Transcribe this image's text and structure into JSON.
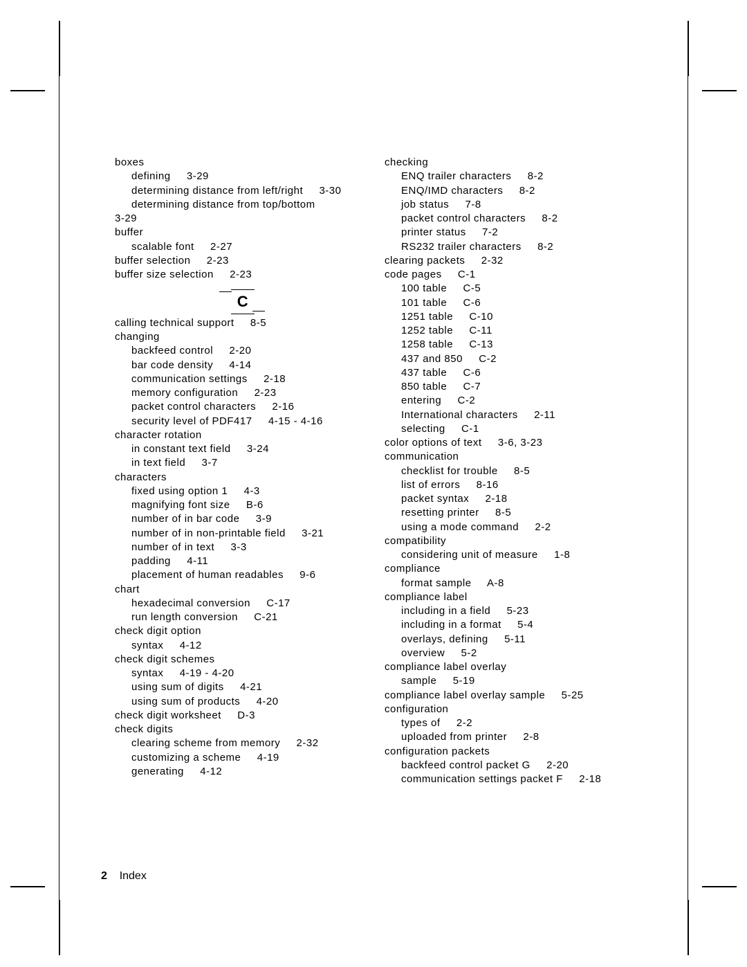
{
  "page": {
    "footer_num": "2",
    "footer_label": "Index",
    "section_letter": "C"
  },
  "left_col": [
    {
      "lvl": 0,
      "t": "boxes"
    },
    {
      "lvl": 1,
      "t": "defining     3-29"
    },
    {
      "lvl": 1,
      "t": "determining distance from left/right     3-30"
    },
    {
      "lvl": 1,
      "t": "determining distance from top/bottom"
    },
    {
      "lvl": 0,
      "t": "3-29"
    },
    {
      "lvl": 0,
      "t": "buffer"
    },
    {
      "lvl": 1,
      "t": "scalable font     2-27"
    },
    {
      "lvl": 0,
      "t": "buffer selection     2-23"
    },
    {
      "lvl": 0,
      "t": "buffer size selection     2-23"
    },
    {
      "section": "C"
    },
    {
      "lvl": 0,
      "t": "calling technical support     8-5"
    },
    {
      "lvl": 0,
      "t": "changing"
    },
    {
      "lvl": 1,
      "t": "backfeed control     2-20"
    },
    {
      "lvl": 1,
      "t": "bar code density     4-14"
    },
    {
      "lvl": 1,
      "t": "communication settings     2-18"
    },
    {
      "lvl": 1,
      "t": "memory configuration     2-23"
    },
    {
      "lvl": 1,
      "t": "packet control characters     2-16"
    },
    {
      "lvl": 1,
      "t": "security level of PDF417     4-15 - 4-16"
    },
    {
      "lvl": 0,
      "t": "character rotation"
    },
    {
      "lvl": 1,
      "t": "in constant text field     3-24"
    },
    {
      "lvl": 1,
      "t": "in text field     3-7"
    },
    {
      "lvl": 0,
      "t": "characters"
    },
    {
      "lvl": 1,
      "t": "fixed using option 1     4-3"
    },
    {
      "lvl": 1,
      "t": "magnifying font size     B-6"
    },
    {
      "lvl": 1,
      "t": "number of in bar code     3-9"
    },
    {
      "lvl": 1,
      "t": "number of in non-printable field     3-21"
    },
    {
      "lvl": 1,
      "t": "number of in text     3-3"
    },
    {
      "lvl": 1,
      "t": "padding     4-11"
    },
    {
      "lvl": 1,
      "t": "placement of human readables     9-6"
    },
    {
      "lvl": 0,
      "t": "chart"
    },
    {
      "lvl": 1,
      "t": "hexadecimal conversion     C-17"
    },
    {
      "lvl": 1,
      "t": "run length conversion     C-21"
    },
    {
      "lvl": 0,
      "t": "check digit option"
    },
    {
      "lvl": 1,
      "t": "syntax     4-12"
    },
    {
      "lvl": 0,
      "t": "check digit schemes"
    },
    {
      "lvl": 1,
      "t": "syntax     4-19 - 4-20"
    },
    {
      "lvl": 1,
      "t": "using sum of digits     4-21"
    },
    {
      "lvl": 1,
      "t": "using sum of products     4-20"
    },
    {
      "lvl": 0,
      "t": "check digit worksheet     D-3"
    },
    {
      "lvl": 0,
      "t": "check digits"
    },
    {
      "lvl": 1,
      "t": "clearing scheme from memory     2-32"
    },
    {
      "lvl": 1,
      "t": "customizing a scheme     4-19"
    },
    {
      "lvl": 1,
      "t": "generating     4-12"
    }
  ],
  "right_col": [
    {
      "lvl": 0,
      "t": "checking"
    },
    {
      "lvl": 1,
      "t": "ENQ trailer characters     8-2"
    },
    {
      "lvl": 1,
      "t": "ENQ/IMD characters     8-2"
    },
    {
      "lvl": 1,
      "t": "job status     7-8"
    },
    {
      "lvl": 1,
      "t": "packet control characters     8-2"
    },
    {
      "lvl": 1,
      "t": "printer status     7-2"
    },
    {
      "lvl": 1,
      "t": "RS232 trailer characters     8-2"
    },
    {
      "lvl": 0,
      "t": "clearing packets     2-32"
    },
    {
      "lvl": 0,
      "t": "code pages     C-1"
    },
    {
      "lvl": 1,
      "t": "100 table     C-5"
    },
    {
      "lvl": 1,
      "t": "101 table     C-6"
    },
    {
      "lvl": 1,
      "t": "1251 table     C-10"
    },
    {
      "lvl": 1,
      "t": "1252 table     C-11"
    },
    {
      "lvl": 1,
      "t": "1258 table     C-13"
    },
    {
      "lvl": 1,
      "t": "437 and 850     C-2"
    },
    {
      "lvl": 1,
      "t": "437 table     C-6"
    },
    {
      "lvl": 1,
      "t": "850 table     C-7"
    },
    {
      "lvl": 1,
      "t": "entering     C-2"
    },
    {
      "lvl": 1,
      "t": "International characters     2-11"
    },
    {
      "lvl": 1,
      "t": "selecting     C-1"
    },
    {
      "lvl": 0,
      "t": "color options of text     3-6, 3-23"
    },
    {
      "lvl": 0,
      "t": "communication"
    },
    {
      "lvl": 1,
      "t": "checklist for trouble     8-5"
    },
    {
      "lvl": 1,
      "t": "list of errors     8-16"
    },
    {
      "lvl": 1,
      "t": "packet syntax     2-18"
    },
    {
      "lvl": 1,
      "t": "resetting printer     8-5"
    },
    {
      "lvl": 1,
      "t": "using a mode command     2-2"
    },
    {
      "lvl": 0,
      "t": "compatibility"
    },
    {
      "lvl": 1,
      "t": "considering unit of measure     1-8"
    },
    {
      "lvl": 0,
      "t": "compliance"
    },
    {
      "lvl": 1,
      "t": "format sample     A-8"
    },
    {
      "lvl": 0,
      "t": "compliance label"
    },
    {
      "lvl": 1,
      "t": "including in a field     5-23"
    },
    {
      "lvl": 1,
      "t": "including in a format     5-4"
    },
    {
      "lvl": 1,
      "t": "overlays, defining     5-11"
    },
    {
      "lvl": 1,
      "t": "overview     5-2"
    },
    {
      "lvl": 0,
      "t": "compliance label overlay"
    },
    {
      "lvl": 1,
      "t": "sample     5-19"
    },
    {
      "lvl": 0,
      "t": "compliance label overlay sample     5-25"
    },
    {
      "lvl": 0,
      "t": "configuration"
    },
    {
      "lvl": 1,
      "t": "types of     2-2"
    },
    {
      "lvl": 1,
      "t": "uploaded from printer     2-8"
    },
    {
      "lvl": 0,
      "t": "configuration packets"
    },
    {
      "lvl": 1,
      "t": "backfeed control packet G     2-20"
    },
    {
      "lvl": 1,
      "t": "communication settings packet F     2-18"
    }
  ]
}
